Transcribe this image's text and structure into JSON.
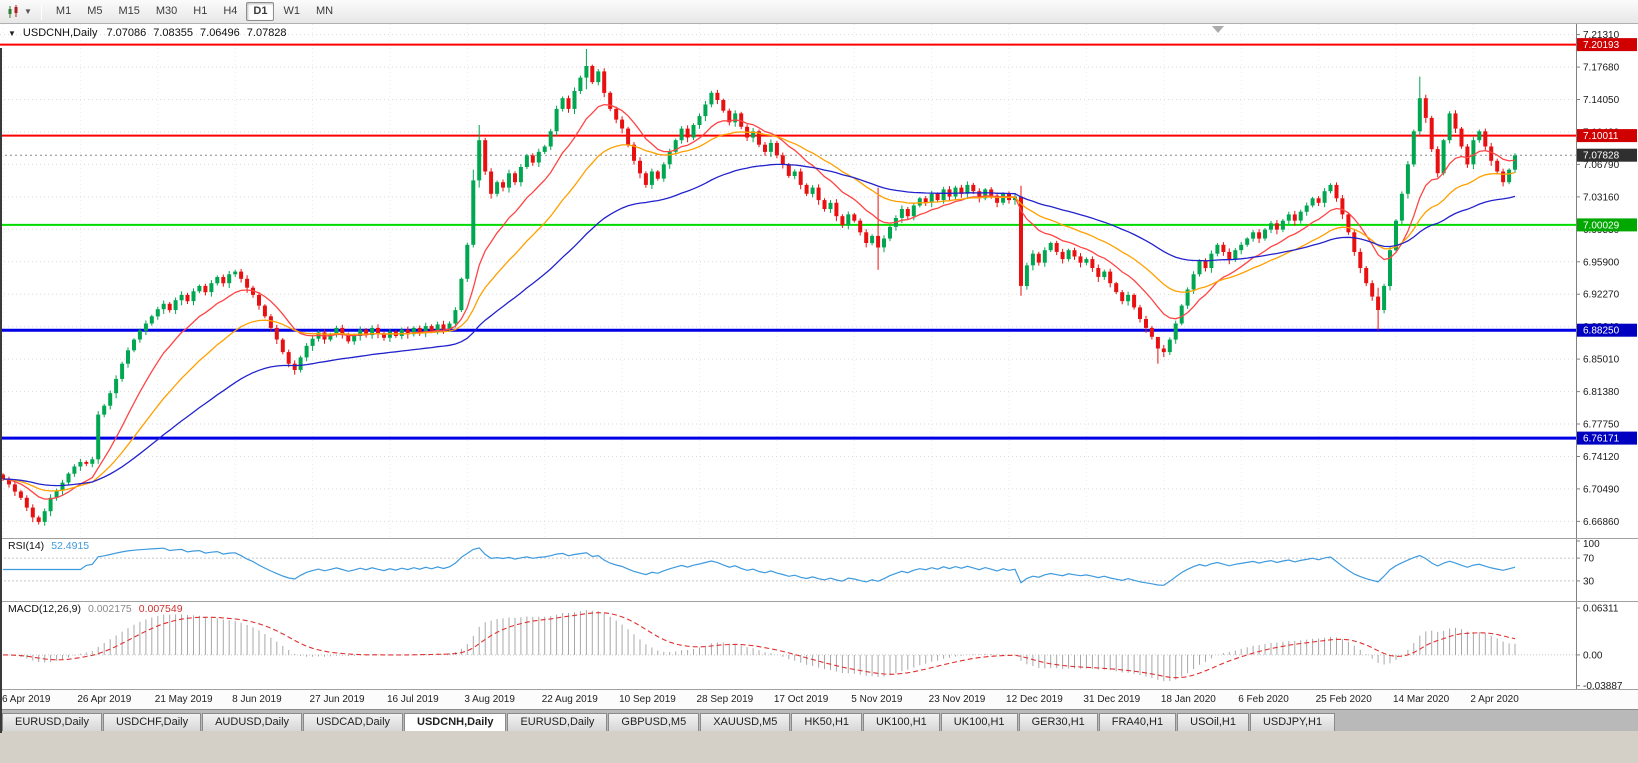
{
  "toolbar": {
    "chart_type_icon": "candlestick-chart-icon",
    "timeframes": [
      "M1",
      "M5",
      "M15",
      "M30",
      "H1",
      "H4",
      "D1",
      "W1",
      "MN"
    ],
    "active_timeframe": "D1"
  },
  "info_bar": {
    "symbol": "USDCNH,Daily",
    "open": "7.07086",
    "high": "7.08355",
    "low": "7.06496",
    "close": "7.07828"
  },
  "rsi_panel": {
    "label": "RSI(14)",
    "value": "52.4915",
    "scale_labels": [
      "100",
      "70",
      "30"
    ]
  },
  "macd_panel": {
    "label": "MACD(12,26,9)",
    "value_main": "0.002175",
    "value_signal": "0.007549",
    "scale_labels": [
      "0.06311",
      "0.00",
      "-0.03887"
    ]
  },
  "tabs": {
    "active_index": 4,
    "items": [
      "EURUSD,Daily",
      "USDCHF,Daily",
      "AUDUSD,Daily",
      "USDCAD,Daily",
      "USDCNH,Daily",
      "EURUSD,Daily",
      "GBPUSD,M5",
      "XAUUSD,M5",
      "HK50,H1",
      "UK100,H1",
      "UK100,H1",
      "GER30,H1",
      "FRA40,H1",
      "USOil,H1",
      "USDJPY,H1"
    ]
  },
  "chart_data": {
    "type": "candlestick",
    "symbol": "USDCNH",
    "timeframe": "Daily",
    "title": "USDCNH,Daily",
    "current_price": 7.07828,
    "price_axis": {
      "top": 7.225,
      "bottom": 6.65,
      "grid_start": 7.2131,
      "grid_step": 0.0363,
      "decimals": 5
    },
    "x_labels": [
      "6 Apr 2019",
      "26 Apr 2019",
      "21 May 2019",
      "8 Jun 2019",
      "27 Jun 2019",
      "16 Jul 2019",
      "3 Aug 2019",
      "22 Aug 2019",
      "10 Sep 2019",
      "28 Sep 2019",
      "17 Oct 2019",
      "5 Nov 2019",
      "23 Nov 2019",
      "12 Dec 2019",
      "31 Dec 2019",
      "18 Jan 2020",
      "6 Feb 2020",
      "25 Feb 2020",
      "14 Mar 2020",
      "2 Apr 2020"
    ],
    "horizontal_lines": [
      {
        "price": 7.20193,
        "color": "#FF0000",
        "width": 2
      },
      {
        "price": 7.10011,
        "color": "#FF0000",
        "width": 2
      },
      {
        "price": 7.00029,
        "color": "#00DC00",
        "width": 2
      },
      {
        "price": 6.8825,
        "color": "#0000E6",
        "width": 3
      },
      {
        "price": 6.76171,
        "color": "#0000E6",
        "width": 3
      }
    ],
    "price_badges": [
      {
        "price": 7.20193,
        "text": "7.20193",
        "color": "#D00000"
      },
      {
        "price": 7.10011,
        "text": "7.10011",
        "color": "#D00000"
      },
      {
        "price": 7.07828,
        "text": "7.07828",
        "color": "#2F2F2F"
      },
      {
        "price": 7.00029,
        "text": "7.00029",
        "color": "#00A800"
      },
      {
        "price": 6.8825,
        "text": "6.88250",
        "color": "#0000C0"
      },
      {
        "price": 6.76171,
        "text": "6.76171",
        "color": "#0000C0"
      }
    ],
    "closes": [
      6.716,
      6.71,
      6.702,
      6.695,
      6.684,
      6.673,
      6.668,
      6.68,
      6.695,
      6.703,
      6.712,
      6.722,
      6.73,
      6.735,
      6.733,
      6.738,
      6.788,
      6.798,
      6.812,
      6.828,
      6.845,
      6.86,
      6.872,
      6.882,
      6.89,
      6.898,
      6.906,
      6.912,
      6.905,
      6.916,
      6.922,
      6.915,
      6.926,
      6.932,
      6.925,
      6.935,
      6.942,
      6.935,
      6.945,
      6.948,
      6.94,
      6.93,
      6.922,
      6.91,
      6.898,
      6.885,
      6.872,
      6.858,
      6.845,
      6.838,
      6.852,
      6.865,
      6.873,
      6.88,
      6.872,
      6.878,
      6.885,
      6.878,
      6.87,
      6.876,
      6.883,
      6.877,
      6.885,
      6.879,
      6.874,
      6.881,
      6.876,
      6.883,
      6.878,
      6.885,
      6.88,
      6.887,
      6.882,
      6.889,
      6.884,
      6.89,
      6.905,
      6.94,
      6.978,
      7.05,
      7.095,
      7.06,
      7.035,
      7.048,
      7.042,
      7.058,
      7.048,
      7.065,
      7.078,
      7.07,
      7.082,
      7.088,
      7.105,
      7.13,
      7.142,
      7.13,
      7.15,
      7.165,
      7.178,
      7.16,
      7.172,
      7.148,
      7.13,
      7.118,
      7.108,
      7.09,
      7.072,
      7.058,
      7.045,
      7.06,
      7.052,
      7.068,
      7.082,
      7.095,
      7.108,
      7.098,
      7.112,
      7.122,
      7.135,
      7.148,
      7.14,
      7.128,
      7.115,
      7.125,
      7.11,
      7.098,
      7.105,
      7.09,
      7.082,
      7.092,
      7.078,
      7.068,
      7.055,
      7.06,
      7.045,
      7.035,
      7.042,
      7.028,
      7.018,
      7.025,
      7.01,
      7.0,
      7.012,
      7.005,
      6.992,
      6.98,
      6.988,
      6.975,
      6.985,
      6.998,
      7.008,
      7.018,
      7.01,
      7.022,
      7.03,
      7.025,
      7.035,
      7.028,
      7.04,
      7.032,
      7.042,
      7.035,
      7.045,
      7.038,
      7.03,
      7.04,
      7.033,
      7.025,
      7.035,
      7.028,
      7.032,
      6.932,
      6.955,
      6.968,
      6.958,
      6.972,
      6.98,
      6.97,
      6.962,
      6.972,
      6.965,
      6.958,
      6.962,
      6.952,
      6.942,
      6.948,
      6.935,
      6.925,
      6.915,
      6.922,
      6.908,
      6.895,
      6.885,
      6.875,
      6.862,
      6.858,
      6.872,
      6.89,
      6.91,
      6.928,
      6.945,
      6.96,
      6.952,
      6.968,
      6.978,
      6.97,
      6.962,
      6.972,
      6.978,
      6.985,
      6.992,
      6.985,
      6.995,
      7.002,
      6.995,
      7.005,
      7.012,
      7.005,
      7.015,
      7.022,
      7.03,
      7.025,
      7.038,
      7.045,
      7.03,
      7.012,
      6.992,
      6.97,
      6.952,
      6.935,
      6.92,
      6.905,
      6.932,
      6.972,
      7.005,
      7.035,
      7.068,
      7.105,
      7.142,
      7.12,
      7.085,
      7.058,
      7.095,
      7.125,
      7.108,
      7.088,
      7.068,
      7.095,
      7.105,
      7.088,
      7.072,
      7.06,
      7.048,
      7.062,
      7.078
    ],
    "range_overrides": {
      "16": [
        6.792,
        6.733
      ],
      "79": [
        7.062,
        6.975
      ],
      "80": [
        7.112,
        7.042
      ],
      "98": [
        7.197,
        7.152
      ],
      "147": [
        7.042,
        6.95
      ],
      "171": [
        7.044,
        6.921
      ],
      "194": [
        6.87,
        6.845
      ],
      "231": [
        6.93,
        6.882
      ],
      "238": [
        7.166,
        7.1
      ]
    },
    "moving_averages": [
      {
        "period": 12,
        "color": "#FF4444"
      },
      {
        "period": 26,
        "color": "#FFA000"
      },
      {
        "period": 55,
        "color": "#2222CC"
      }
    ],
    "rsi": {
      "period": 14,
      "color": "#3E9ADE",
      "range": [
        0,
        100
      ],
      "guides": [
        70,
        30
      ]
    },
    "macd": {
      "fast": 12,
      "slow": 26,
      "signal": 9,
      "hist_color": "#A8A8A8",
      "signal_color": "#E03030",
      "range": [
        0.068,
        -0.043
      ]
    },
    "candle_colors": {
      "up": "#00A650",
      "down": "#E81010"
    }
  }
}
